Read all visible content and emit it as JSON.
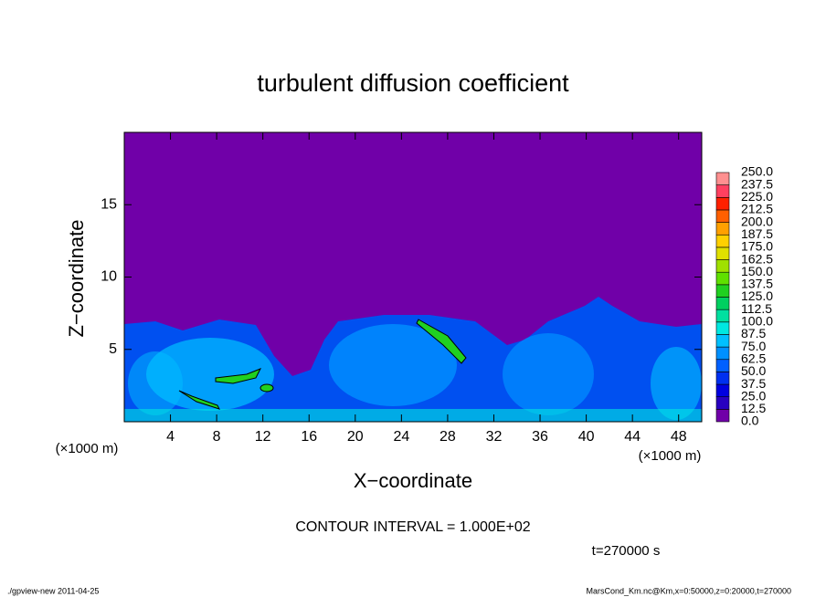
{
  "chart_data": {
    "type": "contour",
    "title": "turbulent diffusion coefficient",
    "xlabel": "X−coordinate",
    "ylabel": "Z−coordinate",
    "xunit": "(×1000 m)",
    "yunit": "(×1000 m)",
    "xlim": [
      0,
      50
    ],
    "ylim": [
      0,
      20
    ],
    "xticks": [
      4,
      8,
      12,
      16,
      20,
      24,
      28,
      32,
      36,
      40,
      44,
      48
    ],
    "yticks": [
      5,
      10,
      15
    ],
    "colorbar": {
      "levels": [
        {
          "value": 0,
          "label": "0.0"
        },
        {
          "value": 12.5,
          "label": "12.5"
        },
        {
          "value": 25,
          "label": "25.0"
        },
        {
          "value": 37.5,
          "label": "37.5"
        },
        {
          "value": 50,
          "label": "50.0"
        },
        {
          "value": 62.5,
          "label": "62.5"
        },
        {
          "value": 75,
          "label": "75.0"
        },
        {
          "value": 87.5,
          "label": "87.5"
        },
        {
          "value": 100,
          "label": "100.0"
        },
        {
          "value": 112.5,
          "label": "112.5"
        },
        {
          "value": 125,
          "label": "125.0"
        },
        {
          "value": 137.5,
          "label": "137.5"
        },
        {
          "value": 150,
          "label": "150.0"
        },
        {
          "value": 162.5,
          "label": "162.5"
        },
        {
          "value": 175,
          "label": "175.0"
        },
        {
          "value": 187.5,
          "label": "187.5"
        },
        {
          "value": 200,
          "label": "200.0"
        },
        {
          "value": 212.5,
          "label": "212.5"
        },
        {
          "value": 225,
          "label": "225.0"
        },
        {
          "value": 237.5,
          "label": "237.5"
        },
        {
          "value": 250,
          "label": "250.0"
        }
      ],
      "colors": [
        "#7000a8",
        "#2800c0",
        "#0000e0",
        "#0030f0",
        "#0060ff",
        "#0090ff",
        "#00c0ff",
        "#00e8e0",
        "#00e0a0",
        "#00d060",
        "#20d020",
        "#60e000",
        "#a0e000",
        "#e0e000",
        "#ffd000",
        "#ffa000",
        "#ff6000",
        "#ff2000",
        "#ff4060",
        "#ff9090"
      ]
    },
    "contour_interval": "CONTOUR INTERVAL = 1.000E+02",
    "time_label": "t=270000 s",
    "footer_left": "./gpview-new  2011-04-25",
    "footer_right": "MarsCond_Km.nc@Km,x=0:50000,z=0:20000,t=270000"
  }
}
